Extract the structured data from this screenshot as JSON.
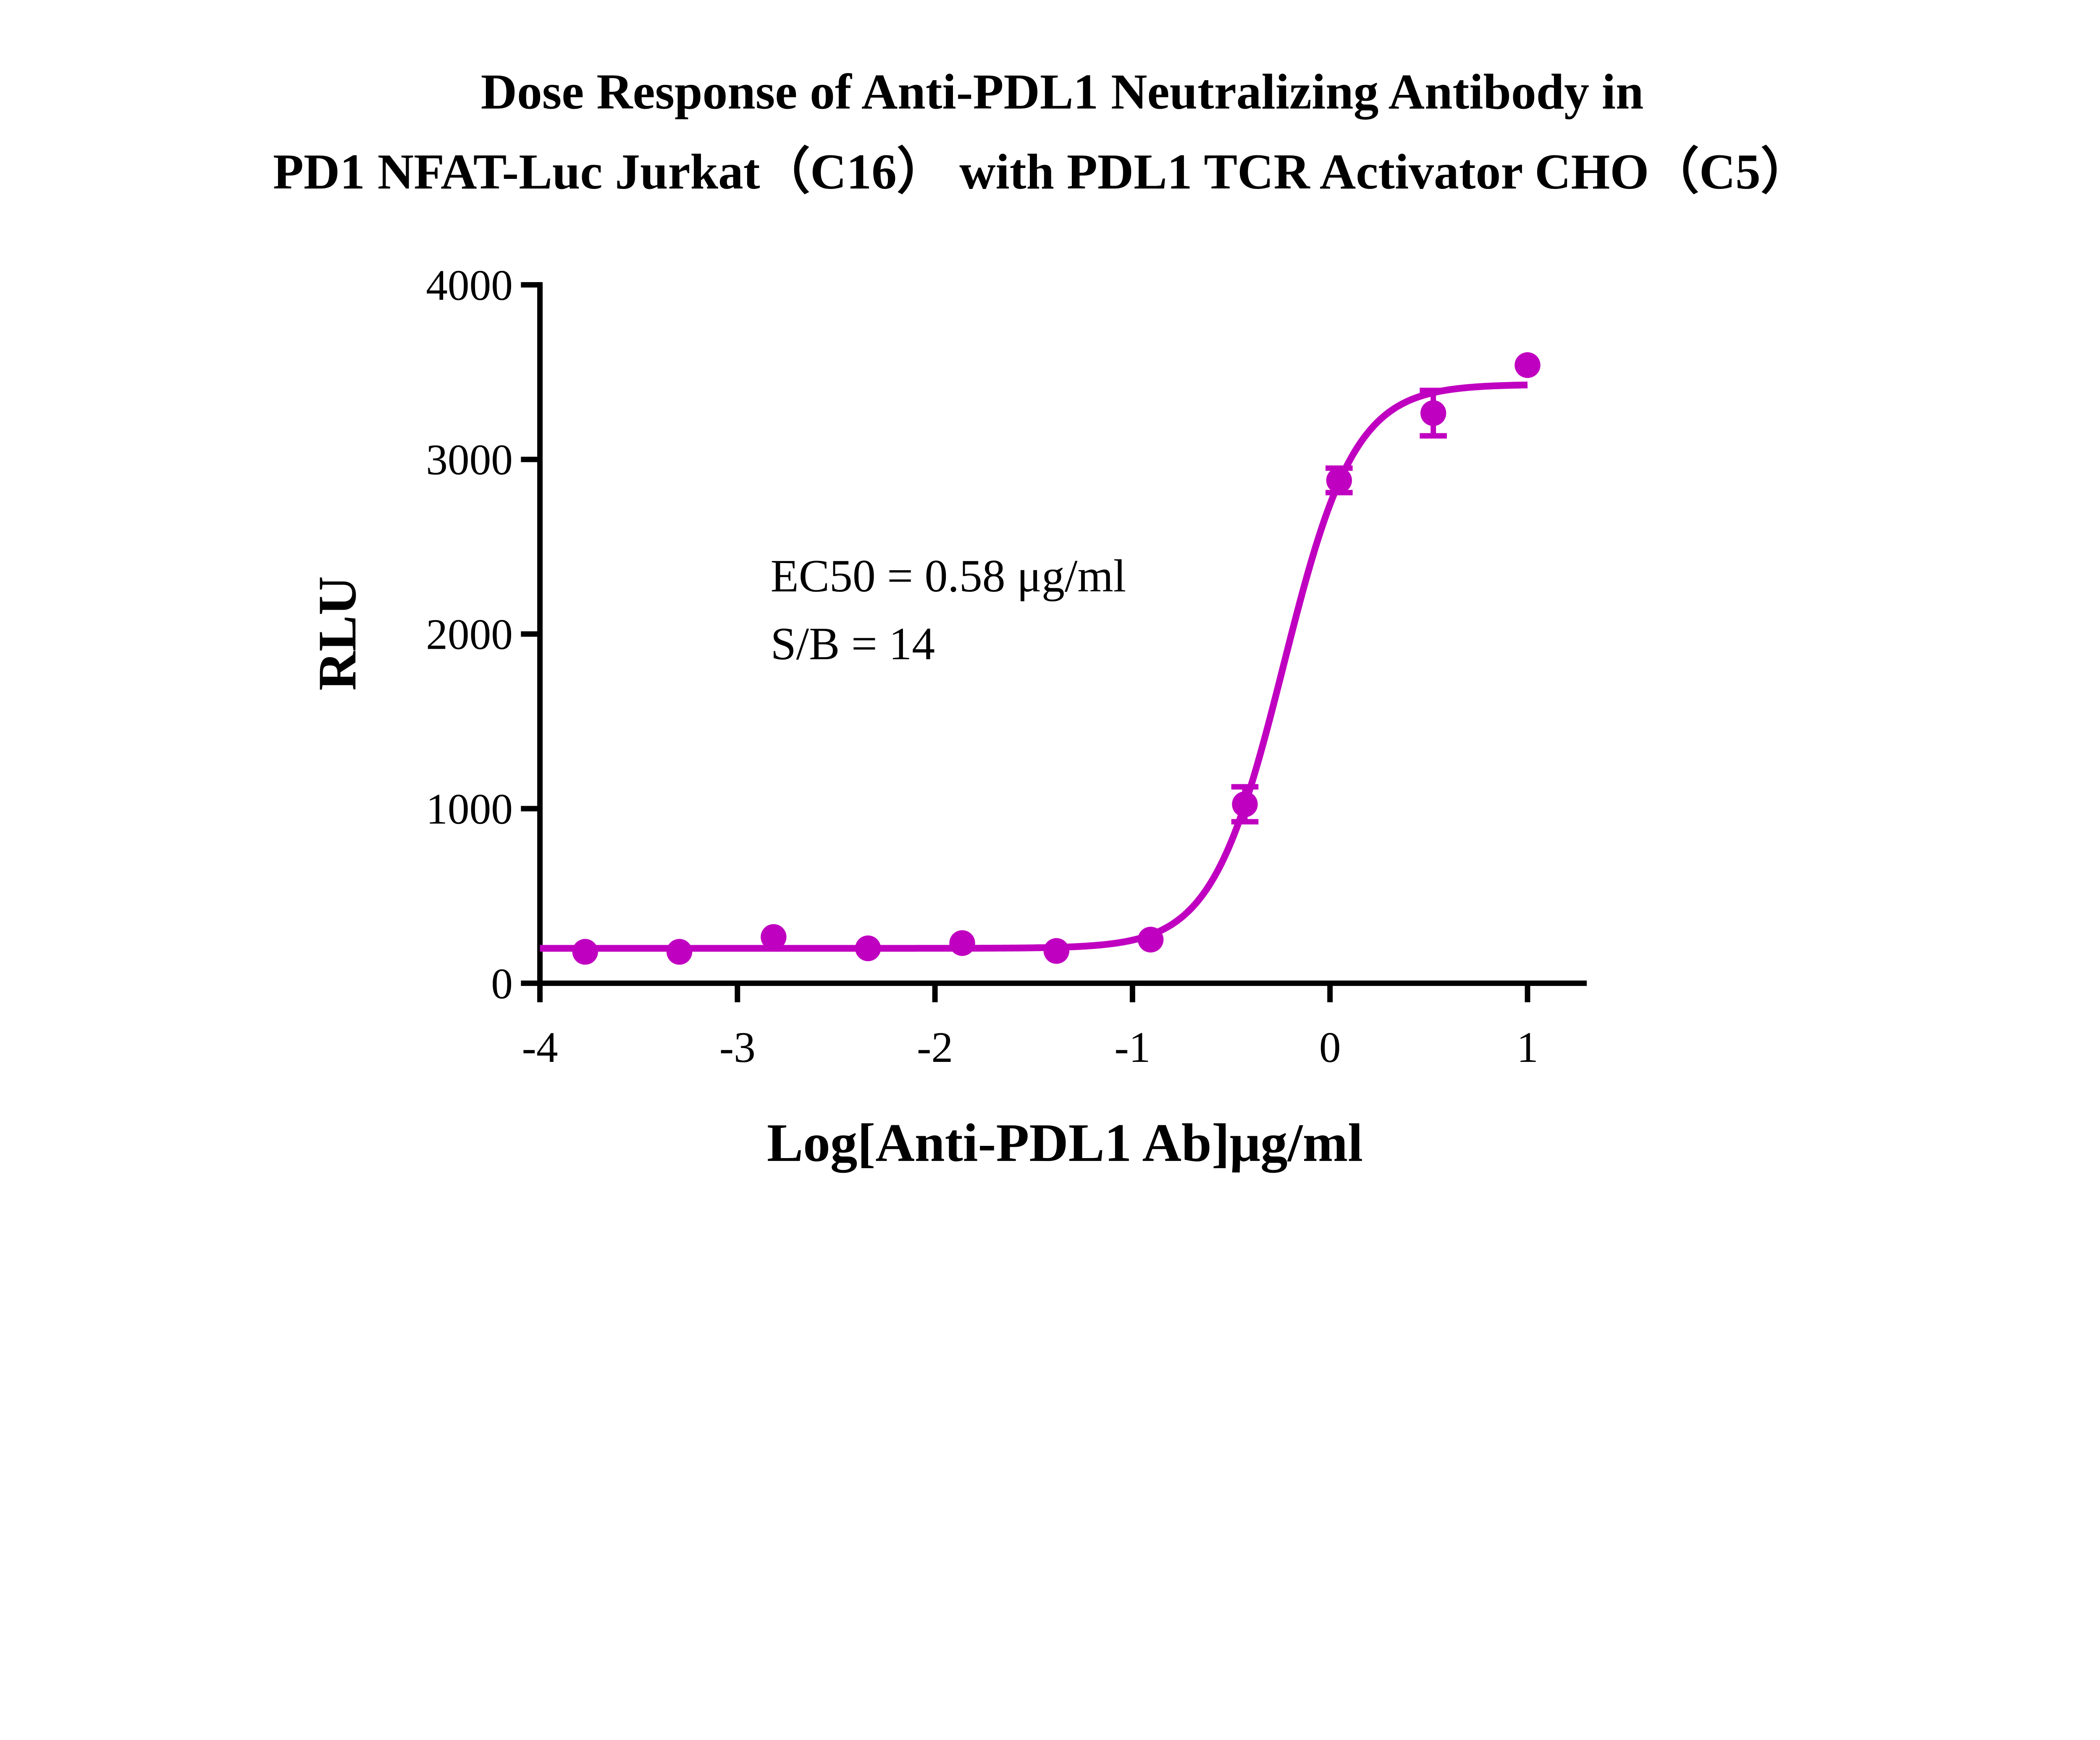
{
  "chart_data": {
    "type": "scatter",
    "title_lines": [
      "Dose Response of Anti-PDL1 Neutralizing Antibody in",
      "PD1 NFAT-Luc Jurkat（C16） with PDL1 TCR Activator CHO（C5）"
    ],
    "xlabel": "Log[Anti-PDL1 Ab]μg/ml",
    "ylabel": "RLU",
    "xlim": [
      -4,
      1.3
    ],
    "ylim": [
      0,
      4000
    ],
    "xticks": [
      -4,
      -3,
      -2,
      -1,
      0,
      1
    ],
    "xtick_labels": [
      "-4",
      "-3",
      "-2",
      "-1",
      "0",
      "1"
    ],
    "yticks": [
      0,
      1000,
      2000,
      3000,
      4000
    ],
    "ytick_labels": [
      "0",
      "1000",
      "2000",
      "3000",
      "4000"
    ],
    "grid": false,
    "color": "#C000C0",
    "annotations": [
      "EC50 = 0.58 μg/ml",
      "S/B = 14"
    ],
    "series": [
      {
        "x": [
          -3.771,
          -3.294,
          -2.817,
          -2.339,
          -1.862,
          -1.385,
          -0.908,
          -0.431,
          0.046,
          0.523,
          1.0
        ],
        "y": [
          180,
          180,
          265,
          200,
          230,
          185,
          250,
          1025,
          2880,
          3265,
          3540
        ],
        "error": [
          0,
          0,
          0,
          0,
          0,
          0,
          0,
          100,
          70,
          130,
          0
        ]
      }
    ],
    "fit": {
      "model": "4PL",
      "bottom": 200,
      "top": 3430,
      "ec50": 0.58,
      "hill": 2.4
    }
  }
}
